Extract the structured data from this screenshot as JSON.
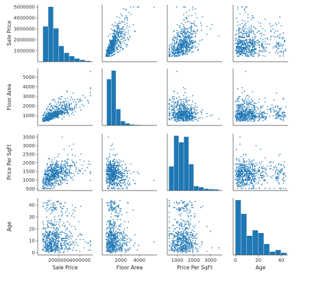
{
  "chart_data": {
    "type": "scatter",
    "kind": "pairplot",
    "title": "",
    "color": "#1f77b4",
    "grid": false,
    "variables": [
      {
        "name": "Sale Price",
        "lim": [
          0,
          5200000
        ],
        "ticks": [
          1000000,
          2000000,
          3000000,
          4000000,
          5000000
        ],
        "tick_labels": [
          "1000000",
          "2000000",
          "3000000",
          "4000000",
          "5000000"
        ],
        "x_ticks": [
          2000000,
          4000000
        ],
        "x_tick_labels": [
          "2000000",
          "4000000"
        ]
      },
      {
        "name": "Floor Area",
        "lim": [
          0,
          5900
        ],
        "ticks": [
          1000,
          2000,
          3000,
          4000,
          5000
        ],
        "tick_labels": [
          "1000",
          "2000",
          "3000",
          "4000",
          "5000"
        ],
        "x_ticks": [
          2000,
          4000
        ],
        "x_tick_labels": [
          "2000",
          "4000"
        ]
      },
      {
        "name": "Price Per SqFt",
        "lim": [
          400,
          3700
        ],
        "ticks": [
          500,
          1000,
          1500,
          2000,
          2500,
          3000,
          3500
        ],
        "tick_labels": [
          "500",
          "1000",
          "1500",
          "2000",
          "2500",
          "3000",
          "3500"
        ],
        "x_ticks": [
          1000,
          2000,
          3000
        ],
        "x_tick_labels": [
          "1000",
          "2000",
          "3000"
        ]
      },
      {
        "name": "Age",
        "lim": [
          -2,
          46
        ],
        "ticks": [
          0,
          10,
          20,
          30,
          40
        ],
        "tick_labels": [
          "0",
          "10",
          "20",
          "30",
          "40"
        ],
        "x_ticks": [
          0,
          20,
          40
        ],
        "x_tick_labels": [
          "0",
          "20",
          "40"
        ]
      }
    ],
    "histograms": [
      {
        "variable": "Sale Price",
        "bins": [
          [
            500000,
            1000000
          ],
          [
            1000000,
            1500000
          ],
          [
            1500000,
            2000000
          ],
          [
            2000000,
            2500000
          ],
          [
            2500000,
            3000000
          ],
          [
            3000000,
            3500000
          ],
          [
            3500000,
            4000000
          ],
          [
            4000000,
            4500000
          ],
          [
            4500000,
            5000000
          ]
        ],
        "counts": [
          180,
          280,
          170,
          80,
          45,
          28,
          16,
          9,
          4
        ]
      },
      {
        "variable": "Floor Area",
        "bins": [
          [
            500,
            1000
          ],
          [
            1000,
            1500
          ],
          [
            1500,
            2000
          ],
          [
            2000,
            2500
          ],
          [
            2500,
            3000
          ],
          [
            3000,
            3500
          ],
          [
            3500,
            4000
          ],
          [
            4000,
            4500
          ],
          [
            4500,
            5000
          ],
          [
            5000,
            5500
          ]
        ],
        "counts": [
          270,
          320,
          95,
          25,
          12,
          5,
          3,
          2,
          1,
          1
        ]
      },
      {
        "variable": "Price Per SqFt",
        "bins": [
          [
            500,
            800
          ],
          [
            800,
            1100
          ],
          [
            1100,
            1400
          ],
          [
            1400,
            1700
          ],
          [
            1700,
            2000
          ],
          [
            2000,
            2300
          ],
          [
            2300,
            2600
          ],
          [
            2600,
            2900
          ],
          [
            2900,
            3200
          ],
          [
            3200,
            3500
          ]
        ],
        "counts": [
          110,
          250,
          220,
          245,
          120,
          20,
          15,
          8,
          6,
          5
        ]
      },
      {
        "variable": "Age",
        "bins": [
          [
            0,
            5
          ],
          [
            5,
            10
          ],
          [
            10,
            15
          ],
          [
            15,
            20
          ],
          [
            20,
            25
          ],
          [
            25,
            30
          ],
          [
            30,
            35
          ],
          [
            35,
            40
          ],
          [
            40,
            45
          ]
        ],
        "counts": [
          200,
          150,
          70,
          90,
          80,
          40,
          12,
          18,
          8
        ]
      }
    ],
    "sample_points": [
      [
        800000,
        700,
        1143,
        3
      ],
      [
        950000,
        850,
        1118,
        12
      ],
      [
        1100000,
        900,
        1222,
        25
      ],
      [
        1200000,
        750,
        1600,
        5
      ],
      [
        1350000,
        1100,
        1227,
        8
      ],
      [
        1500000,
        1200,
        1250,
        18
      ],
      [
        1600000,
        950,
        1684,
        30
      ],
      [
        1750000,
        1300,
        1346,
        2
      ],
      [
        1900000,
        1400,
        1357,
        15
      ],
      [
        2100000,
        1500,
        1400,
        22
      ],
      [
        2300000,
        1250,
        1840,
        6
      ],
      [
        2500000,
        1700,
        1471,
        10
      ],
      [
        2800000,
        1900,
        1474,
        35
      ],
      [
        3000000,
        2100,
        1429,
        4
      ],
      [
        3300000,
        1600,
        2063,
        14
      ],
      [
        3600000,
        2400,
        1500,
        20
      ],
      [
        4000000,
        2600,
        1538,
        1
      ],
      [
        4500000,
        2900,
        1552,
        9
      ],
      [
        1000000,
        650,
        1538,
        40
      ],
      [
        1300000,
        800,
        1625,
        27
      ],
      [
        1450000,
        1050,
        1381,
        11
      ],
      [
        1650000,
        1150,
        1435,
        7
      ],
      [
        1850000,
        1000,
        1850,
        17
      ],
      [
        2000000,
        1350,
        1481,
        24
      ],
      [
        2200000,
        1800,
        1222,
        3
      ],
      [
        2700000,
        1550,
        1742,
        13
      ],
      [
        700000,
        500,
        1400,
        1
      ],
      [
        900000,
        600,
        1500,
        21
      ],
      [
        1150000,
        720,
        1597,
        9
      ],
      [
        1250000,
        1000,
        1250,
        33
      ],
      [
        1400000,
        880,
        1591,
        16
      ],
      [
        1550000,
        1450,
        1069,
        2
      ],
      [
        1700000,
        900,
        1889,
        19
      ],
      [
        1800000,
        2200,
        818,
        5
      ],
      [
        2050000,
        1650,
        1242,
        28
      ],
      [
        2400000,
        1400,
        1714,
        12
      ],
      [
        2600000,
        2000,
        1300,
        8
      ],
      [
        2900000,
        1300,
        2231,
        3
      ],
      [
        3200000,
        2300,
        1391,
        16
      ],
      [
        3500000,
        1800,
        1944,
        22
      ],
      [
        3800000,
        2700,
        1407,
        6
      ],
      [
        4300000,
        3100,
        1387,
        11
      ],
      [
        4800000,
        2500,
        1920,
        2
      ],
      [
        600000,
        450,
        1333,
        4
      ],
      [
        1050000,
        1300,
        808,
        14
      ],
      [
        1600000,
        700,
        2286,
        26
      ],
      [
        2000000,
        800,
        2500,
        9
      ],
      [
        2500000,
        900,
        2778,
        1
      ],
      [
        3000000,
        1000,
        3000,
        18
      ],
      [
        3400000,
        1100,
        3091,
        4
      ],
      [
        1200000,
        1600,
        750,
        7
      ],
      [
        1400000,
        1900,
        737,
        23
      ],
      [
        1700000,
        2400,
        708,
        10
      ],
      [
        2200000,
        3000,
        733,
        3
      ],
      [
        2800000,
        3500,
        800,
        15
      ],
      [
        5000000,
        3400,
        1471,
        6
      ],
      [
        900000,
        1150,
        783,
        38
      ],
      [
        1350000,
        620,
        2177,
        1
      ],
      [
        1950000,
        1700,
        1147,
        20
      ],
      [
        2350000,
        2100,
        1119,
        32
      ]
    ]
  }
}
